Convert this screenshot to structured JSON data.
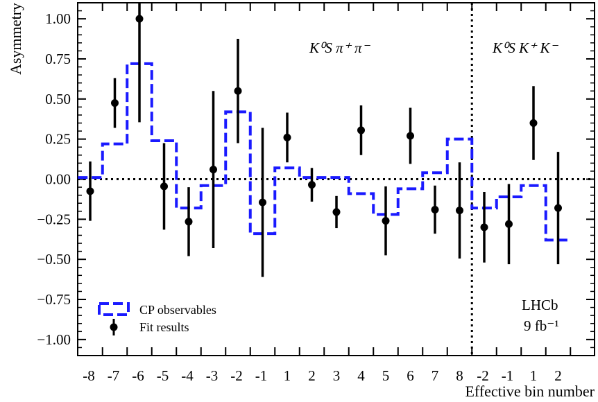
{
  "chart_data": {
    "type": "scatter",
    "title": "",
    "xlabel": "Effective bin number",
    "ylabel": "Asymmetry",
    "ylim": [
      -1.1,
      1.1
    ],
    "yticks": [
      -1.0,
      -0.75,
      -0.5,
      -0.25,
      0.0,
      0.25,
      0.5,
      0.75,
      1.0
    ],
    "ytick_labels": [
      "−1.00",
      "−0.75",
      "−0.50",
      "−0.25",
      "0.00",
      "0.25",
      "0.50",
      "0.75",
      "1.00"
    ],
    "categories": [
      "-8",
      "-7",
      "-6",
      "-5",
      "-4",
      "-3",
      "-2",
      "-1",
      "1",
      "2",
      "3",
      "4",
      "5",
      "6",
      "7",
      "8",
      "-2",
      "-1",
      "1",
      "2"
    ],
    "grid": false,
    "legend_position": "bottom-left",
    "reference_line_y": 0.0,
    "separator_after_category_index": 15,
    "series": [
      {
        "name": "CP observables",
        "style": "dashed-step",
        "color": "#1a1aff",
        "values": [
          0.01,
          0.22,
          0.72,
          0.24,
          -0.18,
          -0.04,
          0.42,
          -0.34,
          0.07,
          0.01,
          0.01,
          -0.09,
          -0.22,
          -0.06,
          0.04,
          0.25,
          -0.18,
          -0.11,
          -0.04,
          -0.38
        ]
      },
      {
        "name": "Fit results",
        "style": "points-with-errors",
        "color": "#000000",
        "values": [
          -0.075,
          0.475,
          1.0,
          -0.045,
          -0.265,
          0.06,
          0.55,
          -0.145,
          0.26,
          -0.035,
          -0.205,
          0.305,
          -0.26,
          0.27,
          -0.19,
          -0.195,
          -0.3,
          -0.28,
          0.35,
          -0.18
        ],
        "errors": [
          0.185,
          0.155,
          0.645,
          0.27,
          0.215,
          0.49,
          0.325,
          0.465,
          0.155,
          0.105,
          0.1,
          0.155,
          0.215,
          0.175,
          0.15,
          0.3,
          0.22,
          0.25,
          0.23,
          0.35
        ]
      }
    ],
    "annotations": {
      "region1_label": "K⁰S π⁺ π⁻",
      "region2_label": "K⁰S K⁺ K⁻",
      "experiment": "LHCb",
      "luminosity": "9 fb⁻¹"
    }
  },
  "colors": {
    "cp_observables": "#1a1aff",
    "fit_results": "#000000",
    "axes": "#000000"
  }
}
